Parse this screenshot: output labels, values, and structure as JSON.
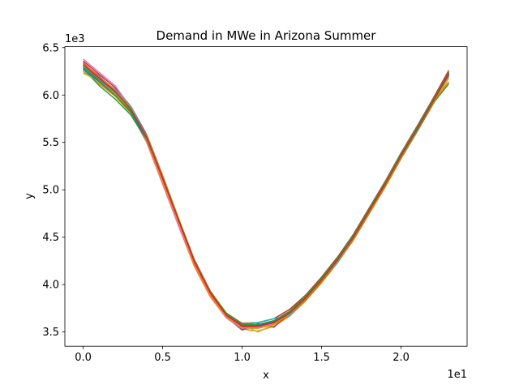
{
  "chart_data": {
    "type": "line",
    "title": "Demand in MWe in Arizona Summer",
    "xlabel": "x",
    "ylabel": "y",
    "x_offset_label": "1e1",
    "y_offset_label": "1e3",
    "xlim": [
      -1.15,
      24.15
    ],
    "ylim": [
      3350,
      6510
    ],
    "x_ticks": [
      0,
      5,
      10,
      15,
      20
    ],
    "x_tick_labels": [
      "0.0",
      "0.5",
      "1.0",
      "1.5",
      "2.0"
    ],
    "y_ticks": [
      3500,
      4000,
      4500,
      5000,
      5500,
      6000,
      6500
    ],
    "y_tick_labels": [
      "3.5",
      "4.0",
      "4.5",
      "5.0",
      "5.5",
      "6.0",
      "6.5"
    ],
    "grid": false,
    "legend": "none",
    "x": [
      0,
      1,
      2,
      3,
      4,
      5,
      6,
      7,
      8,
      9,
      10,
      11,
      12,
      13,
      14,
      15,
      16,
      17,
      18,
      19,
      20,
      21,
      22,
      23
    ],
    "base_profile": [
      6320,
      6180,
      6040,
      5850,
      5550,
      5120,
      4680,
      4240,
      3910,
      3680,
      3560,
      3560,
      3600,
      3700,
      3860,
      4050,
      4260,
      4500,
      4780,
      5060,
      5360,
      5640,
      5930,
      6230
    ],
    "series": [
      {
        "color": "#1f77b4",
        "values": [
          6330,
          6200,
          6050,
          5860,
          5560,
          5130,
          4690,
          4250,
          3920,
          3690,
          3570,
          3570,
          3610,
          3710,
          3870,
          4060,
          4270,
          4510,
          4790,
          5070,
          5370,
          5650,
          5940,
          6240
        ]
      },
      {
        "color": "#ff7f0e",
        "values": [
          6250,
          6120,
          5990,
          5810,
          5500,
          5060,
          4620,
          4190,
          3870,
          3650,
          3530,
          3510,
          3560,
          3670,
          3830,
          4020,
          4230,
          4470,
          4750,
          5030,
          5330,
          5610,
          5900,
          6180
        ]
      },
      {
        "color": "#2ca02c",
        "values": [
          6280,
          6100,
          5960,
          5790,
          5520,
          5090,
          4650,
          4210,
          3890,
          3670,
          3540,
          3540,
          3580,
          3680,
          3840,
          4030,
          4240,
          4480,
          4760,
          5040,
          5340,
          5620,
          5910,
          6120
        ]
      },
      {
        "color": "#d62728",
        "values": [
          6360,
          6220,
          6080,
          5880,
          5580,
          5150,
          4700,
          4260,
          3930,
          3700,
          3590,
          3600,
          3640,
          3740,
          3890,
          4080,
          4290,
          4530,
          4810,
          5090,
          5390,
          5670,
          5960,
          6260
        ]
      },
      {
        "color": "#9467bd",
        "values": [
          6300,
          6160,
          6020,
          5830,
          5530,
          5100,
          4660,
          4220,
          3900,
          3670,
          3550,
          3550,
          3590,
          3690,
          3850,
          4040,
          4250,
          4490,
          4770,
          5050,
          5350,
          5630,
          5920,
          6200
        ]
      },
      {
        "color": "#8c564b",
        "values": [
          6340,
          6190,
          6040,
          5850,
          5540,
          5100,
          4670,
          4230,
          3900,
          3660,
          3520,
          3590,
          3550,
          3700,
          3860,
          4050,
          4260,
          4500,
          4780,
          5060,
          5360,
          5640,
          5930,
          6230
        ]
      },
      {
        "color": "#e377c2",
        "values": [
          6380,
          6240,
          6100,
          5870,
          5520,
          5080,
          4620,
          4210,
          3880,
          3650,
          3540,
          3550,
          3590,
          3700,
          3860,
          4050,
          4260,
          4500,
          4790,
          5080,
          5380,
          5660,
          5950,
          6240
        ]
      },
      {
        "color": "#7f7f7f",
        "values": [
          6300,
          6170,
          6030,
          5850,
          5550,
          5120,
          4680,
          4240,
          3910,
          3680,
          3560,
          3560,
          3600,
          3700,
          3860,
          4050,
          4260,
          4500,
          4780,
          5060,
          5360,
          5640,
          5930,
          6210
        ]
      },
      {
        "color": "#bcbd22",
        "values": [
          6230,
          6150,
          6010,
          5840,
          5570,
          5140,
          4700,
          4250,
          3920,
          3700,
          3580,
          3500,
          3580,
          3690,
          3850,
          4040,
          4250,
          4490,
          4770,
          5050,
          5350,
          5640,
          5920,
          6180
        ]
      },
      {
        "color": "#17becf",
        "values": [
          6310,
          6190,
          6060,
          5880,
          5560,
          5110,
          4680,
          4230,
          3910,
          3690,
          3580,
          3600,
          3640,
          3670,
          3870,
          4060,
          4230,
          4490,
          4790,
          5070,
          5350,
          5630,
          5930,
          6230
        ]
      },
      {
        "color": "#1f77b4",
        "values": [
          6270,
          6140,
          6000,
          5820,
          5530,
          5110,
          4670,
          4240,
          3910,
          3680,
          3570,
          3570,
          3610,
          3700,
          3860,
          4050,
          4260,
          4500,
          4780,
          5060,
          5360,
          5640,
          5930,
          6220
        ]
      },
      {
        "color": "#ff7f0e",
        "values": [
          6330,
          6190,
          6050,
          5860,
          5540,
          5100,
          4660,
          4220,
          3890,
          3660,
          3550,
          3540,
          3580,
          3690,
          3850,
          4040,
          4250,
          4490,
          4770,
          5050,
          5350,
          5640,
          5930,
          6140
        ]
      },
      {
        "color": "#2ca02c",
        "values": [
          6290,
          6150,
          6000,
          5830,
          5560,
          5130,
          4690,
          4250,
          3920,
          3700,
          3580,
          3580,
          3620,
          3720,
          3880,
          4070,
          4280,
          4520,
          4800,
          5080,
          5380,
          5660,
          5950,
          6240
        ]
      },
      {
        "color": "#d62728",
        "values": [
          6320,
          6180,
          6040,
          5850,
          5550,
          5120,
          4680,
          4240,
          3910,
          3680,
          3560,
          3560,
          3600,
          3700,
          3860,
          4050,
          4260,
          4500,
          4780,
          5060,
          5360,
          5640,
          5930,
          6230
        ]
      }
    ]
  }
}
